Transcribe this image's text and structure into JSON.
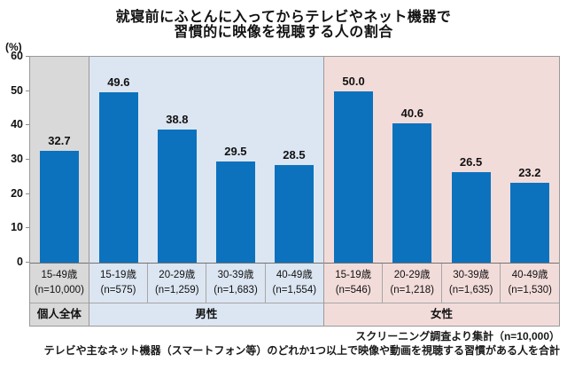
{
  "title": {
    "line1": "就寝前にふとんに入ってからテレビやネット機器で",
    "line2": "習慣的に映像を視聴する人の割合"
  },
  "y_axis": {
    "unit_label": "(%)",
    "ticks": [
      0,
      10,
      20,
      30,
      40,
      50,
      60
    ],
    "max": 60
  },
  "chart_data": {
    "type": "bar",
    "title": "就寝前にふとんに入ってからテレビやネット機器で習慣的に映像を視聴する人の割合",
    "xlabel": "",
    "ylabel": "(%)",
    "ylim": [
      0,
      60
    ],
    "grid": false,
    "legend": "none",
    "bar_color": "#0c72bd",
    "categories": [
      "15-49歳",
      "15-19歳",
      "20-29歳",
      "30-39歳",
      "40-49歳",
      "15-19歳",
      "20-29歳",
      "30-39歳",
      "40-49歳"
    ],
    "values": [
      32.7,
      49.6,
      38.8,
      29.5,
      28.5,
      50.0,
      40.6,
      26.5,
      23.2
    ],
    "groups": [
      {
        "name": "個人全体",
        "bg_color": "#d9d9d9",
        "bars": [
          {
            "age": "15-49歳",
            "n": "(n=10,000)",
            "value": 32.7,
            "label": "32.7"
          }
        ]
      },
      {
        "name": "男性",
        "bg_color": "#dce6f2",
        "bars": [
          {
            "age": "15-19歳",
            "n": "(n=575)",
            "value": 49.6,
            "label": "49.6"
          },
          {
            "age": "20-29歳",
            "n": "(n=1,259)",
            "value": 38.8,
            "label": "38.8"
          },
          {
            "age": "30-39歳",
            "n": "(n=1,683)",
            "value": 29.5,
            "label": "29.5"
          },
          {
            "age": "40-49歳",
            "n": "(n=1,554)",
            "value": 28.5,
            "label": "28.5"
          }
        ]
      },
      {
        "name": "女性",
        "bg_color": "#f2dcda",
        "bars": [
          {
            "age": "15-19歳",
            "n": "(n=546)",
            "value": 50.0,
            "label": "50.0"
          },
          {
            "age": "20-29歳",
            "n": "(n=1,218)",
            "value": 40.6,
            "label": "40.6"
          },
          {
            "age": "30-39歳",
            "n": "(n=1,635)",
            "value": 26.5,
            "label": "26.5"
          },
          {
            "age": "40-49歳",
            "n": "(n=1,530)",
            "value": 23.2,
            "label": "23.2"
          }
        ]
      }
    ]
  },
  "footer": {
    "line1": "スクリーニング調査より集計（n=10,000）",
    "line2": "テレビや主なネット機器（スマートフォン等）のどれか1つ以上で映像や動画を視聴する習慣がある人を合計"
  }
}
